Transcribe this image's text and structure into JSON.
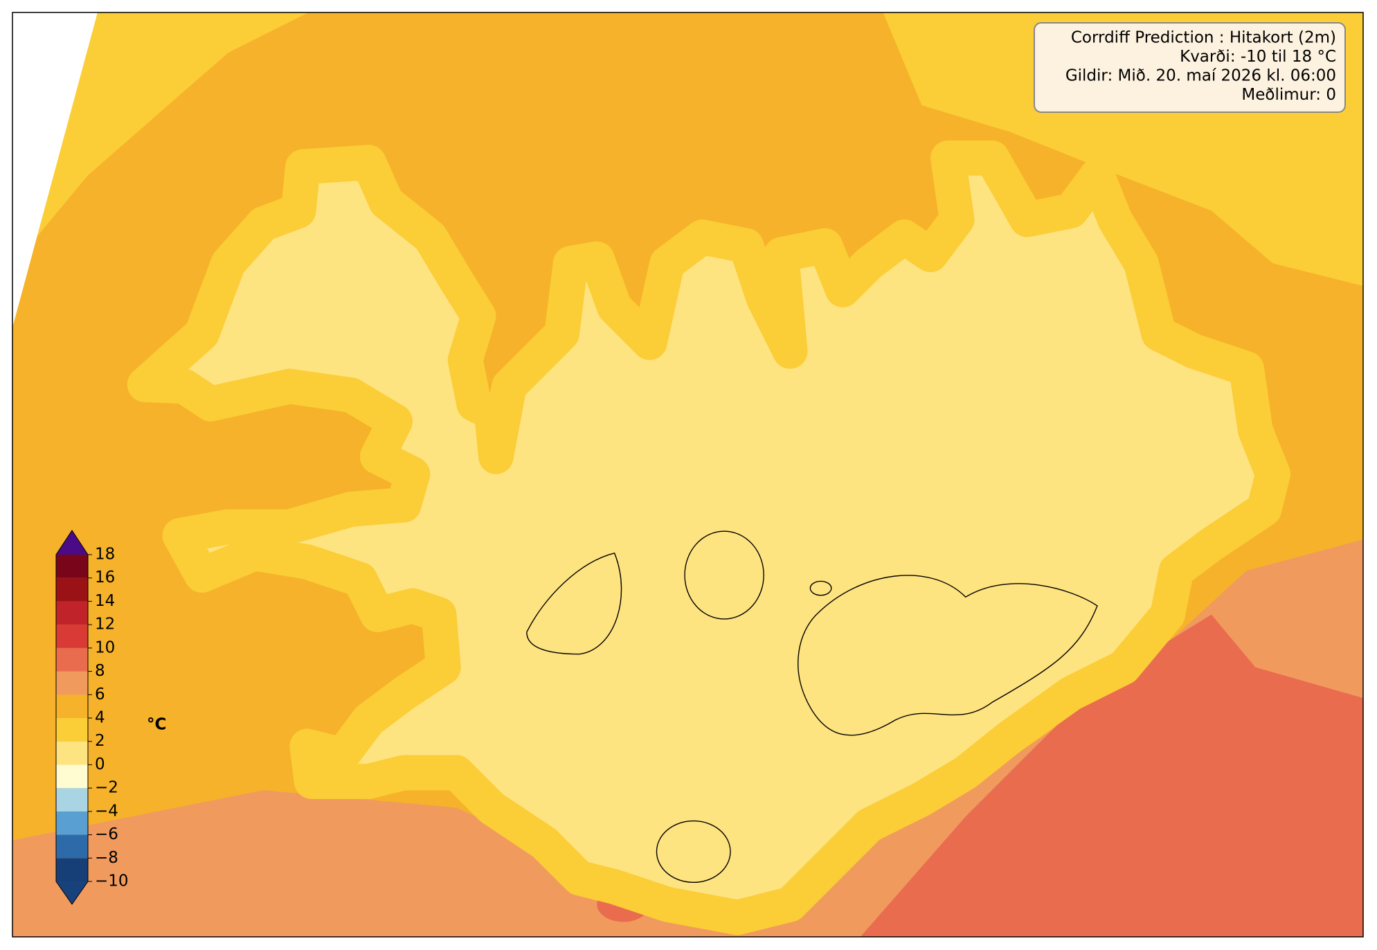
{
  "info": {
    "lines": [
      "Corrdiff Prediction : Hitakort (2m)",
      "Kvarði: -10 til 18 °C",
      "Gildir: Mið. 20. maí 2026 kl. 06:00",
      "Meðlimur: 0"
    ]
  },
  "legend": {
    "unit": "°C",
    "ticks": [
      {
        "value": -10,
        "label": "−10"
      },
      {
        "value": -8,
        "label": "−8"
      },
      {
        "value": -6,
        "label": "−6"
      },
      {
        "value": -4,
        "label": "−4"
      },
      {
        "value": -2,
        "label": "−2"
      },
      0,
      2,
      4,
      6,
      8,
      10,
      12,
      14,
      16,
      18
    ],
    "colors": [
      "#163f78",
      "#2c6aaa",
      "#5a9fd2",
      "#a8d4e4",
      "#fefcd0",
      "#fee381",
      "#fbcd36",
      "#f6b22a",
      "#f09a5e",
      "#e96c4e",
      "#d93a35",
      "#c0232a",
      "#9b1216",
      "#780519"
    ],
    "under_color": "#17427c",
    "over_color": "#4b0a86"
  }
}
